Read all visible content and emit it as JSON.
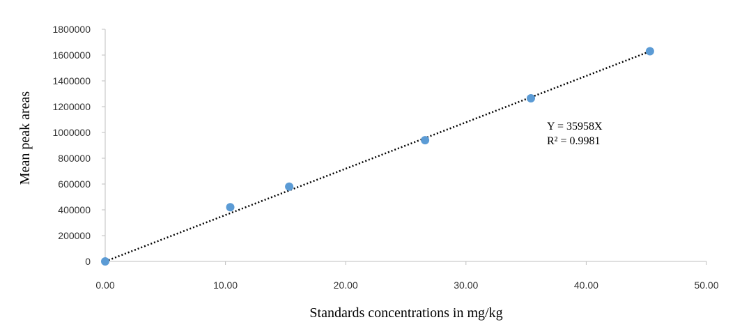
{
  "chart_data": {
    "type": "scatter",
    "title": "",
    "xlabel": "Standards concentrations in mg/kg",
    "ylabel": "Mean peak areas",
    "xlim": [
      0,
      50
    ],
    "ylim": [
      0,
      1800000
    ],
    "x_ticks": [
      {
        "value": 0,
        "label": "0.00"
      },
      {
        "value": 10,
        "label": "10.00"
      },
      {
        "value": 20,
        "label": "20.00"
      },
      {
        "value": 30,
        "label": "30.00"
      },
      {
        "value": 40,
        "label": "40.00"
      },
      {
        "value": 50,
        "label": "50.00"
      }
    ],
    "y_ticks": [
      {
        "value": 0,
        "label": "0"
      },
      {
        "value": 200000,
        "label": "200000"
      },
      {
        "value": 400000,
        "label": "400000"
      },
      {
        "value": 600000,
        "label": "600000"
      },
      {
        "value": 800000,
        "label": "800000"
      },
      {
        "value": 1000000,
        "label": "1000000"
      },
      {
        "value": 1200000,
        "label": "1200000"
      },
      {
        "value": 1400000,
        "label": "1400000"
      },
      {
        "value": 1600000,
        "label": "1600000"
      },
      {
        "value": 1800000,
        "label": "1800000"
      }
    ],
    "series": [
      {
        "name": "Mean peak areas",
        "color": "#5b9bd5",
        "points": [
          {
            "x": 0.0,
            "y": 0
          },
          {
            "x": 10.4,
            "y": 420000
          },
          {
            "x": 15.3,
            "y": 580000
          },
          {
            "x": 26.6,
            "y": 940000
          },
          {
            "x": 35.4,
            "y": 1265000
          },
          {
            "x": 45.3,
            "y": 1630000
          }
        ]
      }
    ],
    "trendline": {
      "type": "linear",
      "slope": 35958,
      "intercept": 0,
      "x_range": [
        0,
        45.3
      ],
      "style": "dotted",
      "color": "#000000"
    },
    "annotation": {
      "equation": "Y = 35958X",
      "r_squared": "R² = 0.9981"
    },
    "colors": {
      "axis": "#bfbfbf",
      "marker": "#5b9bd5",
      "trendline": "#000000"
    }
  }
}
